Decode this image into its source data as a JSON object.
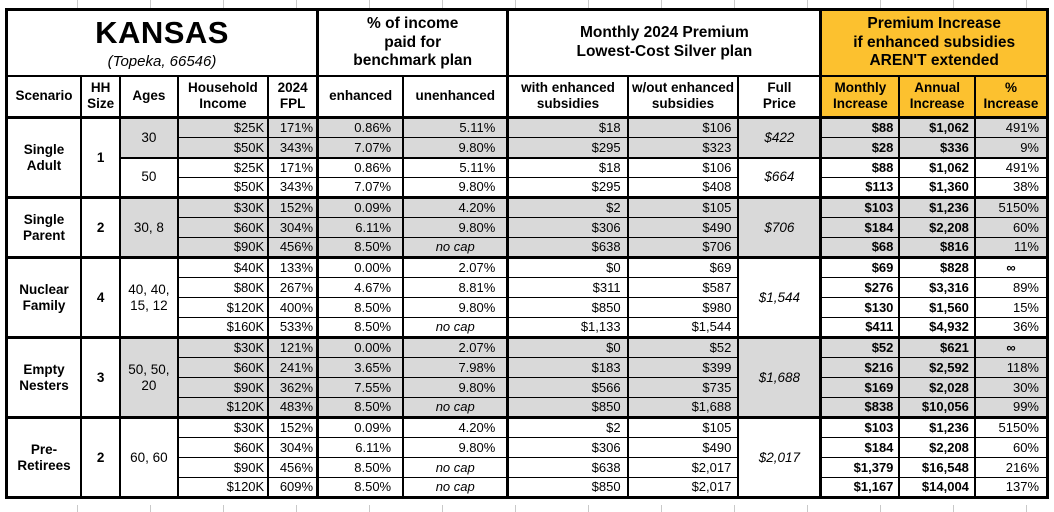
{
  "title": {
    "state": "KANSAS",
    "location": "(Topeka, 66546)"
  },
  "colors": {
    "highlight": "#FCC12F",
    "shaded_row": "#D9D9D9",
    "border": "#000000"
  },
  "header": {
    "pct_income_group": [
      "% of income",
      "paid for",
      "benchmark plan"
    ],
    "premium_group": [
      "Monthly 2024 Premium",
      "Lowest-Cost Silver plan"
    ],
    "increase_group": [
      "Premium Increase",
      "if enhanced subsidies",
      "AREN'T extended"
    ],
    "scenario": "Scenario",
    "hh_size": [
      "HH",
      "Size"
    ],
    "ages": "Ages",
    "household_income": [
      "Household",
      "Income"
    ],
    "fpl": [
      "2024",
      "FPL"
    ],
    "enhanced": "enhanced",
    "unenhanced": "unenhanced",
    "with_subsidies": [
      "with enhanced",
      "subsidies"
    ],
    "without_subsidies": [
      "w/out enhanced",
      "subsidies"
    ],
    "full_price": [
      "Full",
      "Price"
    ],
    "monthly_increase": [
      "Monthly",
      "Increase"
    ],
    "annual_increase": [
      "Annual",
      "Increase"
    ],
    "pct_increase": [
      "%",
      "Increase"
    ]
  },
  "groups": [
    {
      "scenario": "Single Adult",
      "hh_size": "1",
      "subgroups": [
        {
          "ages": "30",
          "shaded": true,
          "full_price": "$422",
          "rows": [
            {
              "income": "$25K",
              "fpl": "171%",
              "enhanced": "0.86%",
              "unenhanced": "5.11%",
              "with_subsidies": "$18",
              "without_subsidies": "$106",
              "monthly_increase": "$88",
              "annual_increase": "$1,062",
              "pct_increase": "491%"
            },
            {
              "income": "$50K",
              "fpl": "343%",
              "enhanced": "7.07%",
              "unenhanced": "9.80%",
              "with_subsidies": "$295",
              "without_subsidies": "$323",
              "monthly_increase": "$28",
              "annual_increase": "$336",
              "pct_increase": "9%"
            }
          ]
        },
        {
          "ages": "50",
          "shaded": false,
          "full_price": "$664",
          "rows": [
            {
              "income": "$25K",
              "fpl": "171%",
              "enhanced": "0.86%",
              "unenhanced": "5.11%",
              "with_subsidies": "$18",
              "without_subsidies": "$106",
              "monthly_increase": "$88",
              "annual_increase": "$1,062",
              "pct_increase": "491%"
            },
            {
              "income": "$50K",
              "fpl": "343%",
              "enhanced": "7.07%",
              "unenhanced": "9.80%",
              "with_subsidies": "$295",
              "without_subsidies": "$408",
              "monthly_increase": "$113",
              "annual_increase": "$1,360",
              "pct_increase": "38%"
            }
          ]
        }
      ]
    },
    {
      "scenario": "Single Parent",
      "hh_size": "2",
      "subgroups": [
        {
          "ages": "30, 8",
          "shaded": true,
          "full_price": "$706",
          "rows": [
            {
              "income": "$30K",
              "fpl": "152%",
              "enhanced": "0.09%",
              "unenhanced": "4.20%",
              "with_subsidies": "$2",
              "without_subsidies": "$105",
              "monthly_increase": "$103",
              "annual_increase": "$1,236",
              "pct_increase": "5150%"
            },
            {
              "income": "$60K",
              "fpl": "304%",
              "enhanced": "6.11%",
              "unenhanced": "9.80%",
              "with_subsidies": "$306",
              "without_subsidies": "$490",
              "monthly_increase": "$184",
              "annual_increase": "$2,208",
              "pct_increase": "60%"
            },
            {
              "income": "$90K",
              "fpl": "456%",
              "enhanced": "8.50%",
              "unenhanced": "no cap",
              "with_subsidies": "$638",
              "without_subsidies": "$706",
              "monthly_increase": "$68",
              "annual_increase": "$816",
              "pct_increase": "11%"
            }
          ]
        }
      ]
    },
    {
      "scenario": "Nuclear Family",
      "hh_size": "4",
      "subgroups": [
        {
          "ages": "40, 40, 15, 12",
          "shaded": false,
          "full_price": "$1,544",
          "rows": [
            {
              "income": "$40K",
              "fpl": "133%",
              "enhanced": "0.00%",
              "unenhanced": "2.07%",
              "with_subsidies": "$0",
              "without_subsidies": "$69",
              "monthly_increase": "$69",
              "annual_increase": "$828",
              "pct_increase": "∞"
            },
            {
              "income": "$80K",
              "fpl": "267%",
              "enhanced": "4.67%",
              "unenhanced": "8.81%",
              "with_subsidies": "$311",
              "without_subsidies": "$587",
              "monthly_increase": "$276",
              "annual_increase": "$3,316",
              "pct_increase": "89%"
            },
            {
              "income": "$120K",
              "fpl": "400%",
              "enhanced": "8.50%",
              "unenhanced": "9.80%",
              "with_subsidies": "$850",
              "without_subsidies": "$980",
              "monthly_increase": "$130",
              "annual_increase": "$1,560",
              "pct_increase": "15%"
            },
            {
              "income": "$160K",
              "fpl": "533%",
              "enhanced": "8.50%",
              "unenhanced": "no cap",
              "with_subsidies": "$1,133",
              "without_subsidies": "$1,544",
              "monthly_increase": "$411",
              "annual_increase": "$4,932",
              "pct_increase": "36%"
            }
          ]
        }
      ]
    },
    {
      "scenario": "Empty Nesters",
      "hh_size": "3",
      "subgroups": [
        {
          "ages": "50, 50, 20",
          "shaded": true,
          "full_price": "$1,688",
          "rows": [
            {
              "income": "$30K",
              "fpl": "121%",
              "enhanced": "0.00%",
              "unenhanced": "2.07%",
              "with_subsidies": "$0",
              "without_subsidies": "$52",
              "monthly_increase": "$52",
              "annual_increase": "$621",
              "pct_increase": "∞"
            },
            {
              "income": "$60K",
              "fpl": "241%",
              "enhanced": "3.65%",
              "unenhanced": "7.98%",
              "with_subsidies": "$183",
              "without_subsidies": "$399",
              "monthly_increase": "$216",
              "annual_increase": "$2,592",
              "pct_increase": "118%"
            },
            {
              "income": "$90K",
              "fpl": "362%",
              "enhanced": "7.55%",
              "unenhanced": "9.80%",
              "with_subsidies": "$566",
              "without_subsidies": "$735",
              "monthly_increase": "$169",
              "annual_increase": "$2,028",
              "pct_increase": "30%"
            },
            {
              "income": "$120K",
              "fpl": "483%",
              "enhanced": "8.50%",
              "unenhanced": "no cap",
              "with_subsidies": "$850",
              "without_subsidies": "$1,688",
              "monthly_increase": "$838",
              "annual_increase": "$10,056",
              "pct_increase": "99%"
            }
          ]
        }
      ]
    },
    {
      "scenario": "Pre-Retirees",
      "hh_size": "2",
      "subgroups": [
        {
          "ages": "60, 60",
          "shaded": false,
          "full_price": "$2,017",
          "rows": [
            {
              "income": "$30K",
              "fpl": "152%",
              "enhanced": "0.09%",
              "unenhanced": "4.20%",
              "with_subsidies": "$2",
              "without_subsidies": "$105",
              "monthly_increase": "$103",
              "annual_increase": "$1,236",
              "pct_increase": "5150%"
            },
            {
              "income": "$60K",
              "fpl": "304%",
              "enhanced": "6.11%",
              "unenhanced": "9.80%",
              "with_subsidies": "$306",
              "without_subsidies": "$490",
              "monthly_increase": "$184",
              "annual_increase": "$2,208",
              "pct_increase": "60%"
            },
            {
              "income": "$90K",
              "fpl": "456%",
              "enhanced": "8.50%",
              "unenhanced": "no cap",
              "with_subsidies": "$638",
              "without_subsidies": "$2,017",
              "monthly_increase": "$1,379",
              "annual_increase": "$16,548",
              "pct_increase": "216%"
            },
            {
              "income": "$120K",
              "fpl": "609%",
              "enhanced": "8.50%",
              "unenhanced": "no cap",
              "with_subsidies": "$850",
              "without_subsidies": "$2,017",
              "monthly_increase": "$1,167",
              "annual_increase": "$14,004",
              "pct_increase": "137%"
            }
          ]
        }
      ]
    }
  ]
}
